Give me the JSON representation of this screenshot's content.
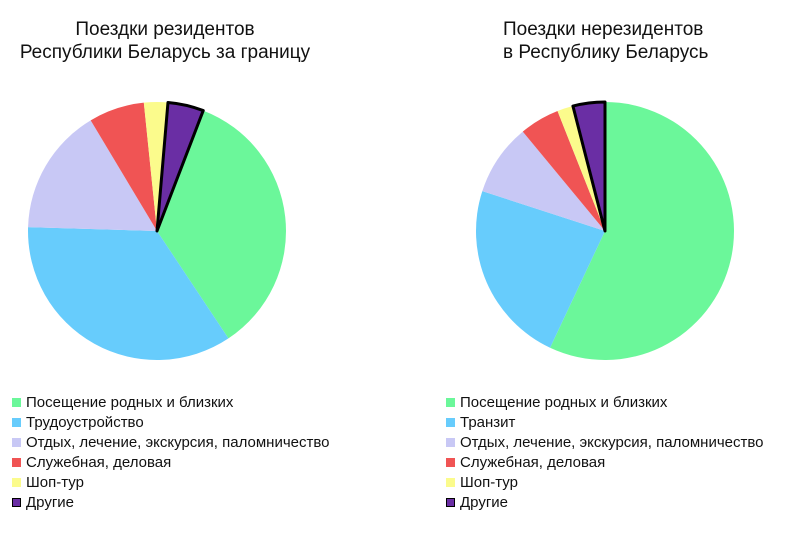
{
  "chart_data": [
    {
      "type": "pie",
      "title_lines": [
        "Поездки резидентов",
        "Республики Беларусь за границу"
      ],
      "start_angle_deg": 21,
      "slices": [
        {
          "label": "Посещение родных и близких",
          "value": 35,
          "color": "#6BF79A"
        },
        {
          "label": "Трудоустройство",
          "value": 35,
          "color": "#67CCFC"
        },
        {
          "label": "Отдых, лечение, экскурсия, паломничество",
          "value": 16,
          "color": "#C8C8F5"
        },
        {
          "label": "Служебная, деловая",
          "value": 7,
          "color": "#F05454"
        },
        {
          "label": "Шоп-тур",
          "value": 3,
          "color": "#FBFB8C"
        },
        {
          "label": "Другие",
          "value": 4.5,
          "color": "#6A2EA4",
          "outlined": true
        }
      ],
      "legend": "bottom-left"
    },
    {
      "type": "pie",
      "title_lines": [
        "Поездки нерезидентов",
        "в Республику Беларусь"
      ],
      "start_angle_deg": 0,
      "slices": [
        {
          "label": "Посещение родных и близких",
          "value": 57,
          "color": "#6BF79A"
        },
        {
          "label": "Транзит",
          "value": 23,
          "color": "#67CCFC"
        },
        {
          "label": "Отдых, лечение, экскурсия, паломничество",
          "value": 9,
          "color": "#C8C8F5"
        },
        {
          "label": "Служебная, деловая",
          "value": 5,
          "color": "#F05454"
        },
        {
          "label": "Шоп-тур",
          "value": 2,
          "color": "#FBFB8C"
        },
        {
          "label": "Другие",
          "value": 4,
          "color": "#6A2EA4",
          "outlined": true
        }
      ],
      "legend": "bottom-left"
    }
  ]
}
